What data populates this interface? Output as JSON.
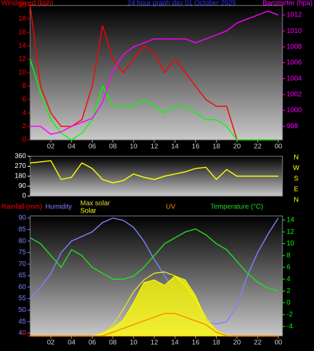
{
  "chart_data": [
    {
      "type": "line",
      "title": "24 hour graph day   01 October 2025",
      "ylabel": "Windspeed (kph)",
      "y2label": "Barometer (hpa)",
      "x": [
        0,
        1,
        2,
        3,
        4,
        5,
        6,
        7,
        8,
        9,
        10,
        11,
        12,
        13,
        14,
        15,
        16,
        17,
        18,
        19,
        20,
        21,
        22,
        23,
        24
      ],
      "xlim": [
        0,
        24
      ],
      "xticks": [
        {
          "value": 2,
          "label": "02"
        },
        {
          "value": 4,
          "label": "04"
        },
        {
          "value": 6,
          "label": "06"
        },
        {
          "value": 8,
          "label": "08"
        },
        10,
        12,
        14,
        16,
        18,
        20,
        22,
        {
          "value": 24,
          "label": "00"
        }
      ],
      "ylim": [
        0,
        20
      ],
      "yticks": [
        0,
        2,
        4,
        6,
        8,
        10,
        12,
        14,
        16,
        18,
        20
      ],
      "ycolor": "#ff0000",
      "y2lim": [
        996.3,
        1013.2
      ],
      "y2ticks": [
        998,
        1000,
        1002,
        1004,
        1006,
        1008,
        1010,
        1012
      ],
      "y2color": "#ff00ff",
      "series": [
        {
          "color": "#ff0000",
          "axis": "y",
          "values": [
            20,
            8,
            4,
            2,
            2,
            3,
            8,
            17,
            12,
            10,
            12,
            14,
            13,
            10,
            12,
            10,
            8,
            6,
            5,
            5,
            0,
            0,
            0,
            0,
            0
          ]
        },
        {
          "color": "#00ff00",
          "axis": "y",
          "values": [
            12,
            7,
            3,
            1,
            0,
            1,
            3,
            8,
            5,
            5,
            5,
            6,
            5,
            4,
            5,
            5,
            4,
            3,
            3,
            2,
            0,
            0,
            0,
            0,
            0
          ]
        },
        {
          "color": "#ff00ff",
          "axis": "y2",
          "values": [
            998,
            998,
            997,
            997.3,
            998,
            998.5,
            999,
            1001,
            1005,
            1007,
            1008,
            1008.5,
            1009,
            1009,
            1009,
            1009,
            1008.5,
            1009,
            1009.5,
            1010,
            1011,
            1011.5,
            1012,
            1012.5,
            1012
          ]
        }
      ]
    },
    {
      "type": "line",
      "compass": [
        "N",
        "W",
        "S",
        "E",
        "N"
      ],
      "x": [
        0,
        1,
        2,
        3,
        4,
        5,
        6,
        7,
        8,
        9,
        10,
        11,
        12,
        13,
        14,
        15,
        16,
        17,
        18,
        19,
        20,
        21,
        22,
        23,
        24
      ],
      "xlim": [
        0,
        24
      ],
      "ylim": [
        0,
        360
      ],
      "yticks": [
        0,
        90,
        180,
        270,
        360
      ],
      "ycolor": "#ffffff",
      "series": [
        {
          "color": "#ffff00",
          "axis": "y",
          "values": [
            300,
            310,
            320,
            150,
            170,
            300,
            250,
            150,
            120,
            140,
            200,
            170,
            150,
            180,
            200,
            220,
            250,
            260,
            150,
            240,
            180,
            180,
            180,
            180,
            180
          ]
        }
      ]
    },
    {
      "type": "line",
      "x": [
        0,
        1,
        2,
        3,
        4,
        5,
        6,
        7,
        8,
        9,
        10,
        11,
        12,
        13,
        14,
        15,
        16,
        17,
        18,
        19,
        20,
        21,
        22,
        23,
        24
      ],
      "xlim": [
        0,
        24
      ],
      "xticks": [
        {
          "value": 2,
          "label": "02"
        },
        {
          "value": 4,
          "label": "04"
        },
        {
          "value": 6,
          "label": "06"
        },
        {
          "value": 8,
          "label": "08"
        },
        10,
        12,
        14,
        16,
        18,
        20,
        22,
        {
          "value": 24,
          "label": "00"
        }
      ],
      "ylim": [
        38.8,
        90.9
      ],
      "yticks": [
        40,
        45,
        50,
        55,
        60,
        65,
        70,
        75,
        80,
        85,
        90
      ],
      "ycolor": "#8080ff",
      "y2lim": [
        -5.6,
        14.7
      ],
      "y2ticks": [
        -4,
        -2,
        0,
        2,
        4,
        6,
        8,
        10,
        12,
        14
      ],
      "y2color": "#00ff00",
      "series": [
        {
          "name": "Rainfall (mm)",
          "color": "#ff0000",
          "ylim": [
            0,
            10
          ],
          "yticks": [
            0
          ],
          "values": [
            0,
            0,
            0,
            0,
            0,
            0,
            0,
            0,
            0,
            0,
            0,
            0,
            0,
            0,
            0,
            0,
            0,
            0,
            0,
            0,
            0,
            0,
            0,
            0,
            0
          ]
        },
        {
          "name": "Humidity",
          "color": "#8080ff",
          "axis": "y",
          "values": [
            55,
            60,
            66,
            75,
            80,
            82,
            84,
            88,
            90,
            89,
            86,
            80,
            72,
            65,
            58,
            52,
            48,
            45,
            44,
            45,
            52,
            65,
            75,
            83,
            90
          ]
        },
        {
          "name": "Max solar",
          "color": "#e0e030",
          "ylim": [
            0,
            900
          ],
          "values": [
            0,
            0,
            0,
            0,
            0,
            0,
            0,
            10,
            80,
            200,
            330,
            420,
            470,
            480,
            450,
            380,
            270,
            140,
            40,
            0,
            0,
            0,
            0,
            0,
            0
          ]
        },
        {
          "name": "Solar",
          "color": "#ffff00",
          "fill": true,
          "ylim": [
            0,
            900
          ],
          "values": [
            0,
            0,
            0,
            0,
            0,
            0,
            0,
            20,
            60,
            120,
            250,
            400,
            420,
            380,
            450,
            420,
            300,
            120,
            40,
            5,
            0,
            0,
            0,
            0,
            0
          ]
        },
        {
          "name": "UV",
          "color": "#ff8800",
          "ylim": [
            0,
            16
          ],
          "values": [
            0,
            0,
            0,
            0,
            0,
            0,
            0,
            0,
            0.5,
            1,
            1.5,
            2,
            2.5,
            3,
            3,
            2.5,
            2,
            1.5,
            0.5,
            0,
            0,
            0,
            0,
            0,
            0
          ]
        },
        {
          "name": "Temperature (°C)",
          "color": "#22dd22",
          "axis": "y2",
          "values": [
            11,
            10,
            8,
            6,
            9,
            8,
            6,
            5,
            4,
            4,
            4.5,
            6,
            8,
            10,
            11,
            12,
            12.5,
            11.5,
            10,
            9,
            7,
            5,
            3.5,
            2.5,
            2
          ]
        }
      ]
    }
  ]
}
